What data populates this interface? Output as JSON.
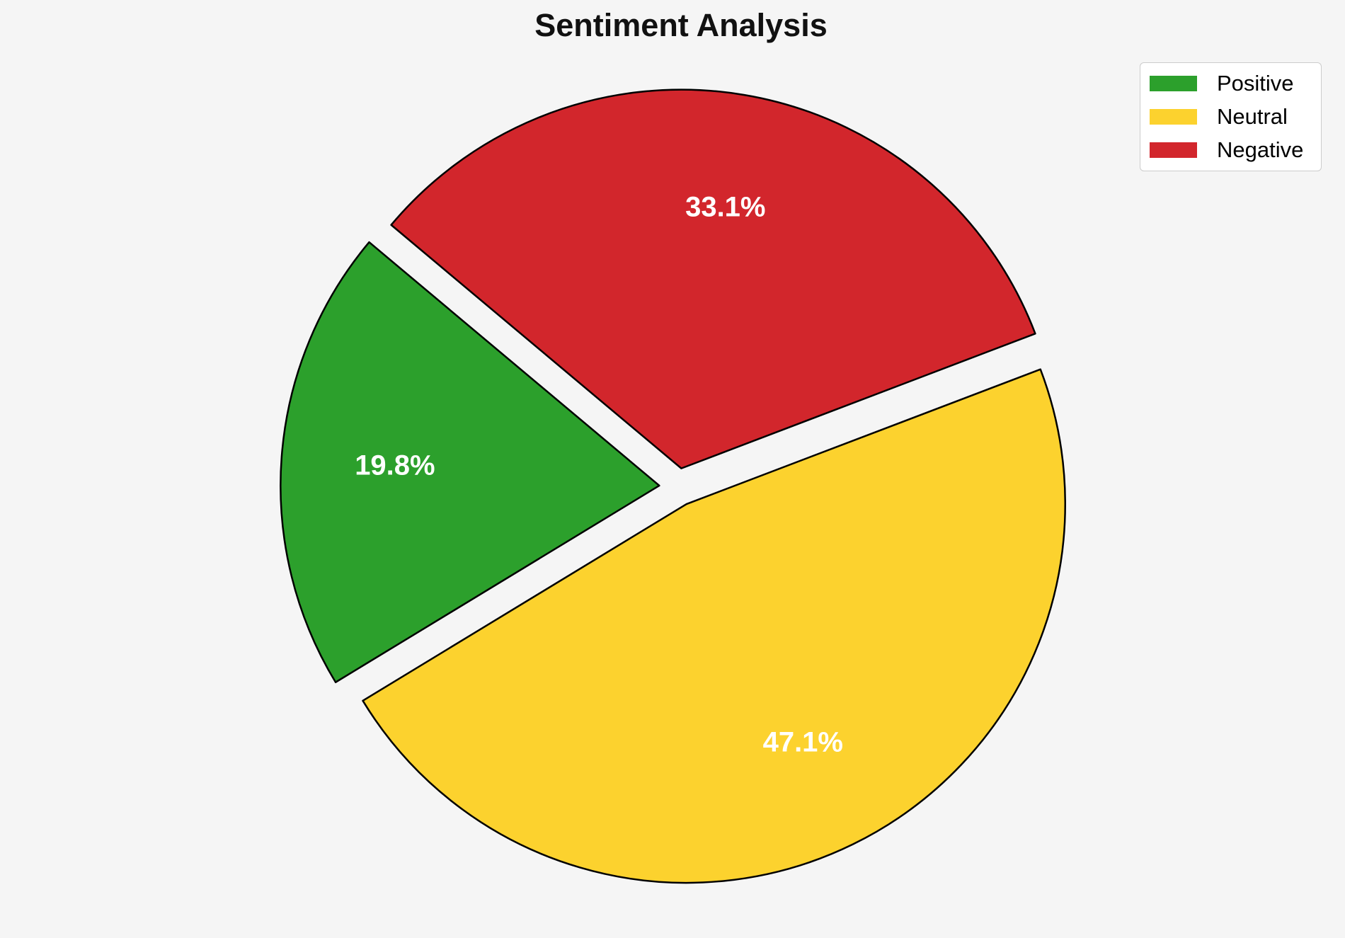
{
  "page": {
    "background": "#f5f5f5"
  },
  "chart_data": {
    "type": "pie",
    "title": "Sentiment Analysis",
    "categories": [
      "Positive",
      "Neutral",
      "Negative"
    ],
    "values": [
      19.8,
      47.1,
      33.1
    ],
    "slice_labels": [
      "19.8%",
      "47.1%",
      "33.1%"
    ],
    "colors": [
      "#2ca02c",
      "#fcd22e",
      "#d2262c"
    ],
    "start_angle": 140,
    "direction": "counterclockwise",
    "explode": 0.05,
    "edge_color": "#000000",
    "edge_width": 2.5,
    "pct_distance": 0.7,
    "pct_color": "#ffffff",
    "background": "#f5f5f5",
    "legend": {
      "position": "upper right",
      "entries": [
        "Positive",
        "Neutral",
        "Negative"
      ]
    }
  }
}
